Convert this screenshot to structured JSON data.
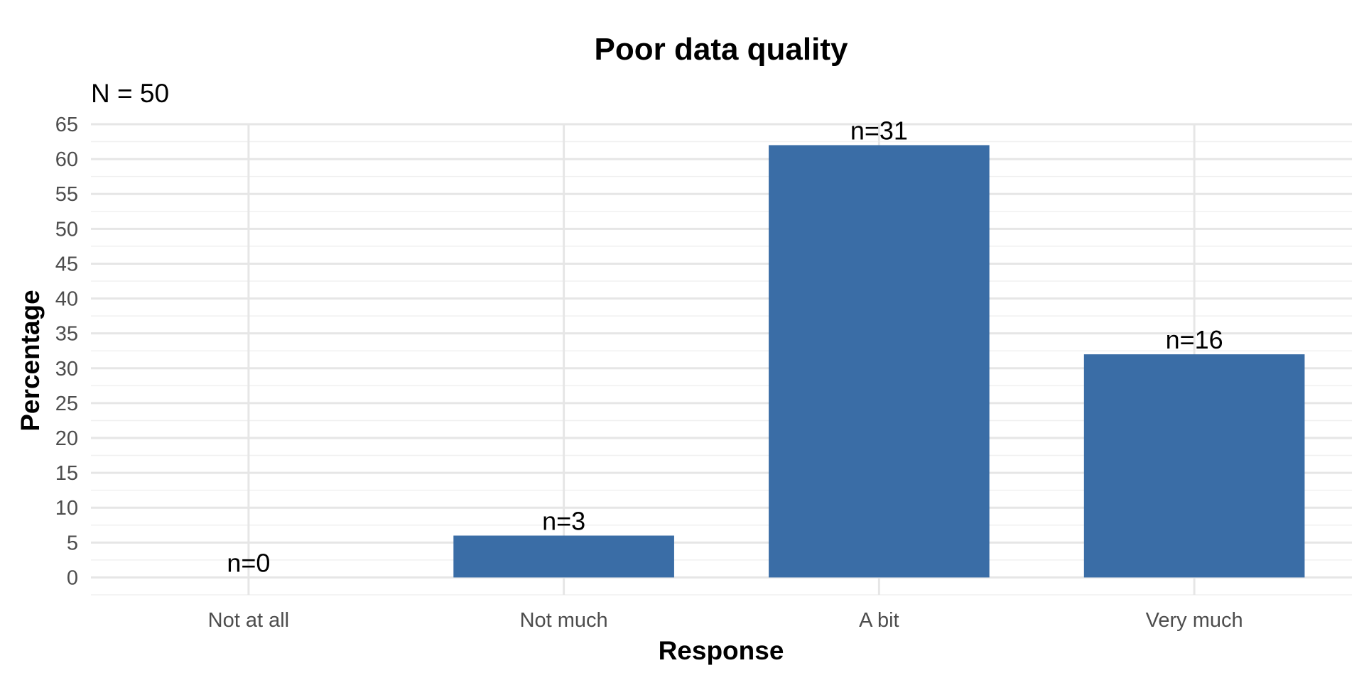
{
  "chart_data": {
    "type": "bar",
    "title": "Poor data quality",
    "subtitle": "N = 50",
    "xlabel": "Response",
    "ylabel": "Percentage",
    "categories": [
      "Not at all",
      "Not much",
      "A bit",
      "Very much"
    ],
    "values": [
      0,
      6,
      62,
      32
    ],
    "data_labels": [
      "n=0",
      "n=3",
      "n=31",
      "n=16"
    ],
    "ylim": [
      -2.5,
      65
    ],
    "yticks": [
      0,
      5,
      10,
      15,
      20,
      25,
      30,
      35,
      40,
      45,
      50,
      55,
      60,
      65
    ],
    "grid": true,
    "legend": "none",
    "colors": {
      "bar": "#3A6DA6",
      "grid_major": "#E6E6E6",
      "grid_minor": "#F0F0F0"
    }
  }
}
